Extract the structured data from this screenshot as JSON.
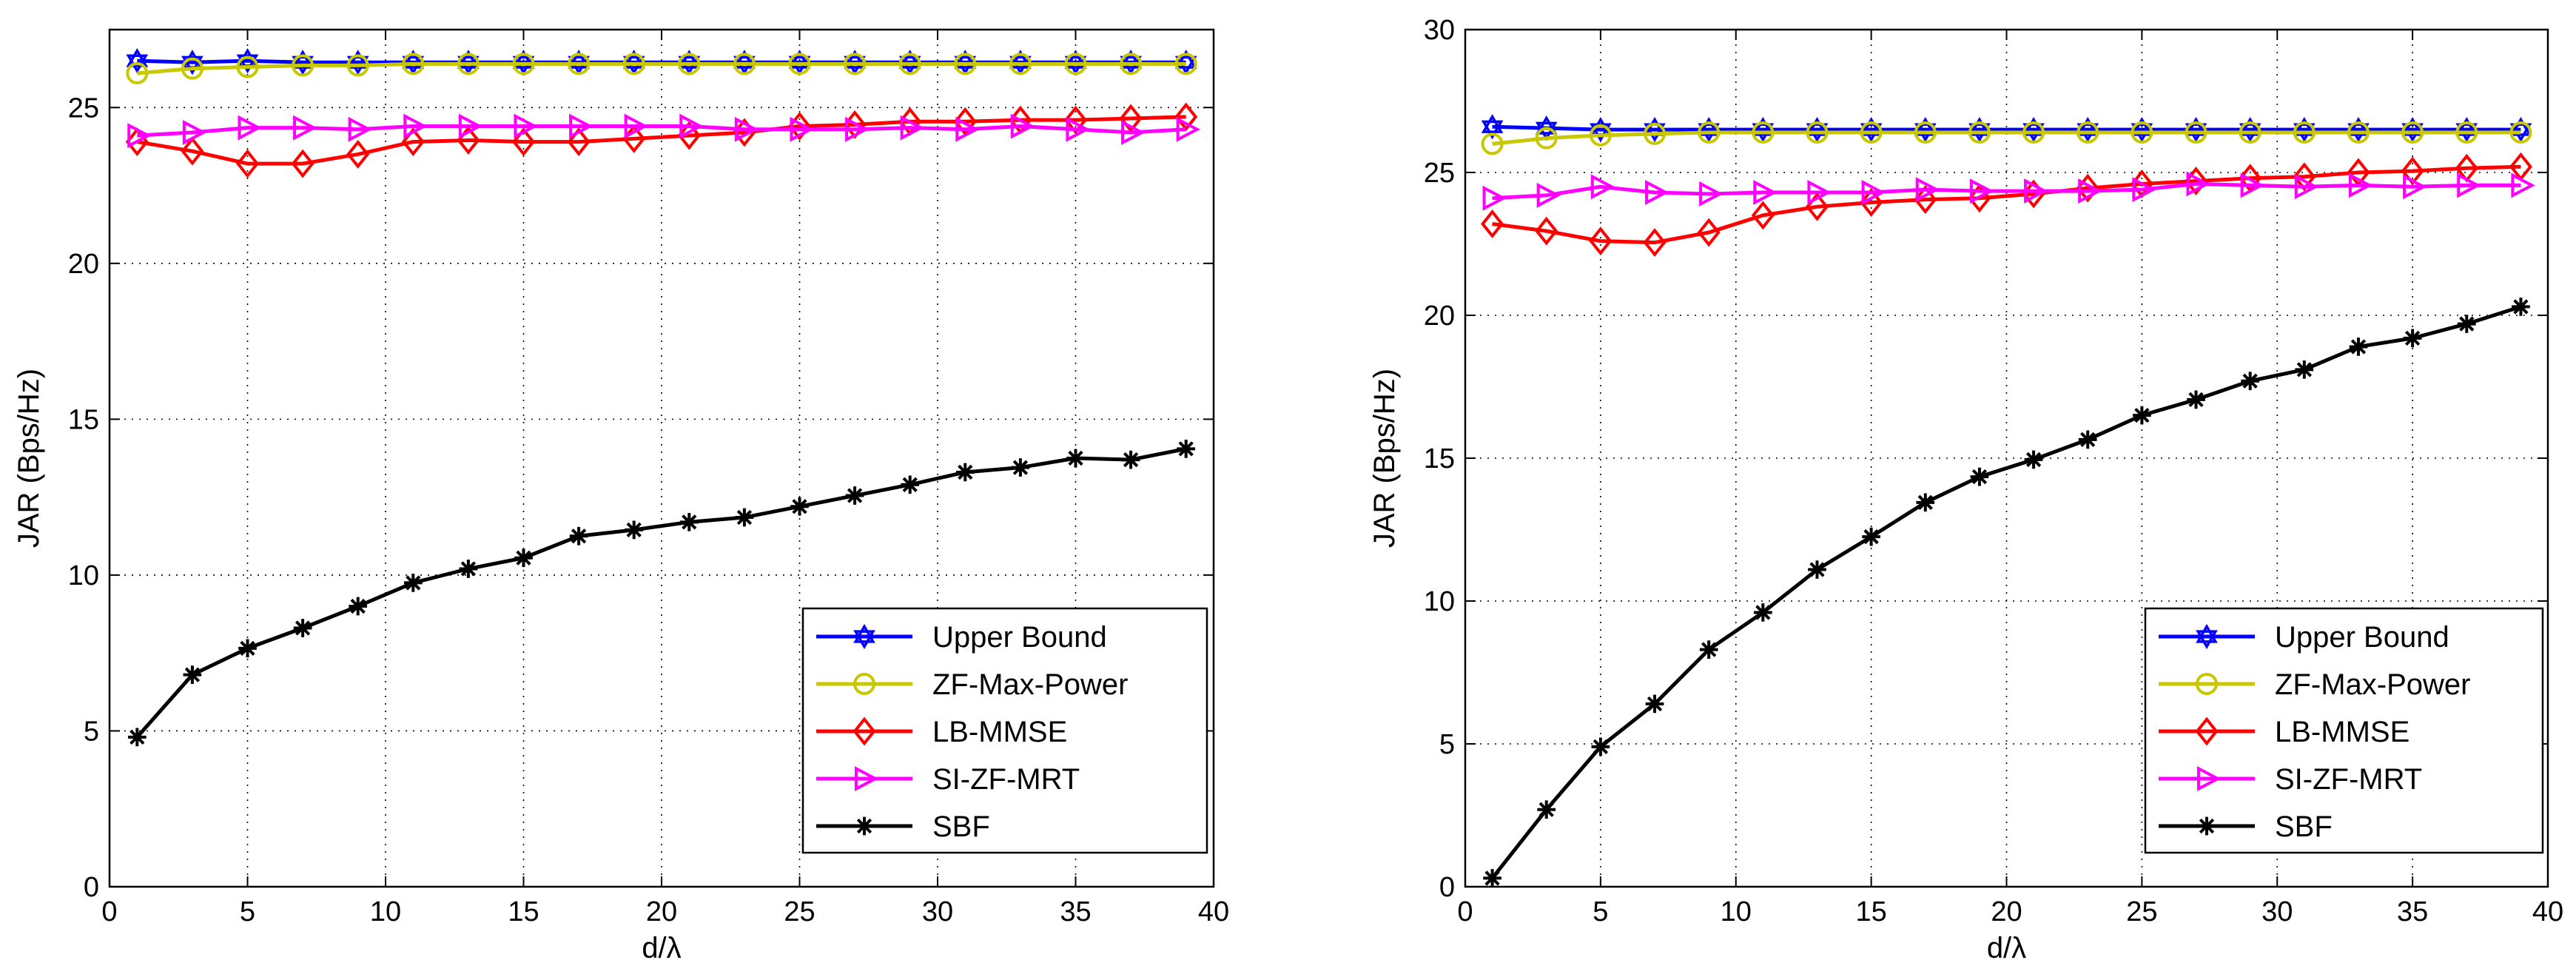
{
  "chart_data": [
    {
      "type": "line",
      "xlabel": "d/λ",
      "ylabel": "JAR (Bps/Hz)",
      "xlim": [
        0,
        40
      ],
      "ylim": [
        0,
        27.5
      ],
      "xticks": [
        0,
        5,
        10,
        15,
        20,
        25,
        30,
        35,
        40
      ],
      "yticks": [
        0,
        5,
        10,
        15,
        20,
        25
      ],
      "grid": true,
      "legend_position": "bottom-right",
      "x": [
        1,
        3,
        5,
        7,
        9,
        11,
        13,
        15,
        17,
        19,
        21,
        23,
        25,
        27,
        29,
        31,
        33,
        35,
        37,
        39
      ],
      "series": [
        {
          "name": "Upper Bound",
          "color": "#0000ff",
          "marker": "hexagram",
          "values": [
            26.5,
            26.45,
            26.5,
            26.45,
            26.45,
            26.45,
            26.45,
            26.45,
            26.45,
            26.45,
            26.45,
            26.45,
            26.45,
            26.45,
            26.45,
            26.45,
            26.45,
            26.45,
            26.45,
            26.45
          ]
        },
        {
          "name": "ZF-Max-Power",
          "color": "#c8c800",
          "marker": "circle",
          "values": [
            26.1,
            26.25,
            26.3,
            26.35,
            26.35,
            26.4,
            26.4,
            26.4,
            26.4,
            26.4,
            26.4,
            26.4,
            26.4,
            26.4,
            26.4,
            26.4,
            26.4,
            26.4,
            26.4,
            26.4
          ]
        },
        {
          "name": "LB-MMSE",
          "color": "#ff0000",
          "marker": "diamond",
          "values": [
            23.9,
            23.6,
            23.2,
            23.2,
            23.5,
            23.9,
            23.95,
            23.9,
            23.9,
            24.0,
            24.1,
            24.2,
            24.4,
            24.45,
            24.55,
            24.55,
            24.6,
            24.6,
            24.65,
            24.7
          ]
        },
        {
          "name": "SI-ZF-MRT",
          "color": "#ff00ff",
          "marker": "triangle-right",
          "values": [
            24.1,
            24.2,
            24.35,
            24.35,
            24.3,
            24.4,
            24.4,
            24.4,
            24.4,
            24.4,
            24.4,
            24.3,
            24.3,
            24.3,
            24.35,
            24.3,
            24.4,
            24.3,
            24.2,
            24.3
          ]
        },
        {
          "name": "SBF",
          "color": "#000000",
          "marker": "asterisk",
          "values": [
            4.8,
            6.8,
            7.65,
            8.3,
            9.0,
            9.75,
            10.2,
            10.55,
            11.25,
            11.45,
            11.7,
            11.85,
            12.2,
            12.55,
            12.9,
            13.3,
            13.45,
            13.75,
            13.7,
            14.05
          ]
        }
      ]
    },
    {
      "type": "line",
      "xlabel": "d/λ",
      "ylabel": "JAR (Bps/Hz)",
      "xlim": [
        0,
        40
      ],
      "ylim": [
        0,
        30
      ],
      "xticks": [
        0,
        5,
        10,
        15,
        20,
        25,
        30,
        35,
        40
      ],
      "yticks": [
        0,
        5,
        10,
        15,
        20,
        25,
        30
      ],
      "grid": true,
      "legend_position": "bottom-right",
      "x": [
        1,
        3,
        5,
        7,
        9,
        11,
        13,
        15,
        17,
        19,
        21,
        23,
        25,
        27,
        29,
        31,
        33,
        35,
        37,
        39
      ],
      "series": [
        {
          "name": "Upper Bound",
          "color": "#0000ff",
          "marker": "hexagram",
          "values": [
            26.6,
            26.55,
            26.5,
            26.5,
            26.5,
            26.5,
            26.5,
            26.5,
            26.5,
            26.5,
            26.5,
            26.5,
            26.5,
            26.5,
            26.5,
            26.5,
            26.5,
            26.5,
            26.5,
            26.5
          ]
        },
        {
          "name": "ZF-Max-Power",
          "color": "#c8c800",
          "marker": "circle",
          "values": [
            26.0,
            26.2,
            26.3,
            26.35,
            26.4,
            26.4,
            26.4,
            26.4,
            26.4,
            26.4,
            26.4,
            26.4,
            26.4,
            26.4,
            26.4,
            26.4,
            26.4,
            26.4,
            26.4,
            26.4
          ]
        },
        {
          "name": "LB-MMSE",
          "color": "#ff0000",
          "marker": "diamond",
          "values": [
            23.2,
            22.95,
            22.6,
            22.55,
            22.9,
            23.5,
            23.8,
            23.95,
            24.05,
            24.1,
            24.25,
            24.45,
            24.6,
            24.7,
            24.8,
            24.85,
            25.0,
            25.05,
            25.15,
            25.2
          ]
        },
        {
          "name": "SI-ZF-MRT",
          "color": "#ff00ff",
          "marker": "triangle-right",
          "values": [
            24.1,
            24.2,
            24.5,
            24.3,
            24.25,
            24.3,
            24.3,
            24.3,
            24.4,
            24.35,
            24.35,
            24.35,
            24.4,
            24.6,
            24.55,
            24.5,
            24.55,
            24.5,
            24.55,
            24.55
          ]
        },
        {
          "name": "SBF",
          "color": "#000000",
          "marker": "asterisk",
          "values": [
            0.3,
            2.7,
            4.9,
            6.4,
            8.3,
            9.6,
            11.1,
            12.25,
            13.45,
            14.35,
            14.95,
            15.65,
            16.5,
            17.05,
            17.7,
            18.1,
            18.9,
            19.2,
            19.7,
            20.3
          ]
        }
      ]
    }
  ]
}
